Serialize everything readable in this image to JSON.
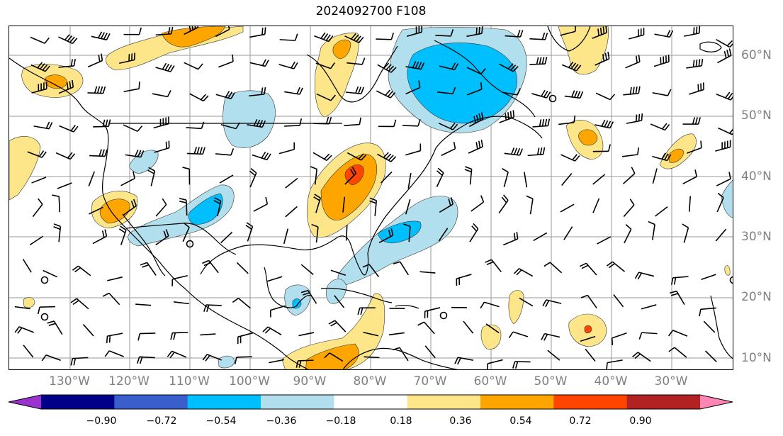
{
  "title": "2024092700 F108",
  "lon_labels": [
    "130°W",
    "120°W",
    "110°W",
    "100°W",
    "90°W",
    "80°W",
    "70°W",
    "60°W",
    "50°W",
    "40°W",
    "30°W"
  ],
  "lat_labels": [
    "60°N",
    "50°N",
    "40°N",
    "30°N",
    "20°N",
    "10°N"
  ],
  "colorbar": {
    "tick_labels": [
      "−0.90",
      "−0.72",
      "−0.54",
      "−0.36",
      "−0.18",
      "0.18",
      "0.36",
      "0.54",
      "0.72",
      "0.90"
    ],
    "bins": [
      "#9a32cd",
      "#000088",
      "#3a5fcd",
      "#00bfff",
      "#b2dfee",
      "#ffffff",
      "#fde68a",
      "#ffa500",
      "#ff4500",
      "#b22222",
      "#ff85b4"
    ],
    "extend": "both"
  },
  "colors": {
    "positive_light": "#fde68a",
    "positive_mid": "#ffa500",
    "positive_strong": "#ff4500",
    "negative_light": "#b2dfee",
    "negative_mid": "#00bfff"
  },
  "icons": {
    "wind_barb": "wind-barb-icon",
    "calm_circle": "calm-wind-circle-icon"
  }
}
